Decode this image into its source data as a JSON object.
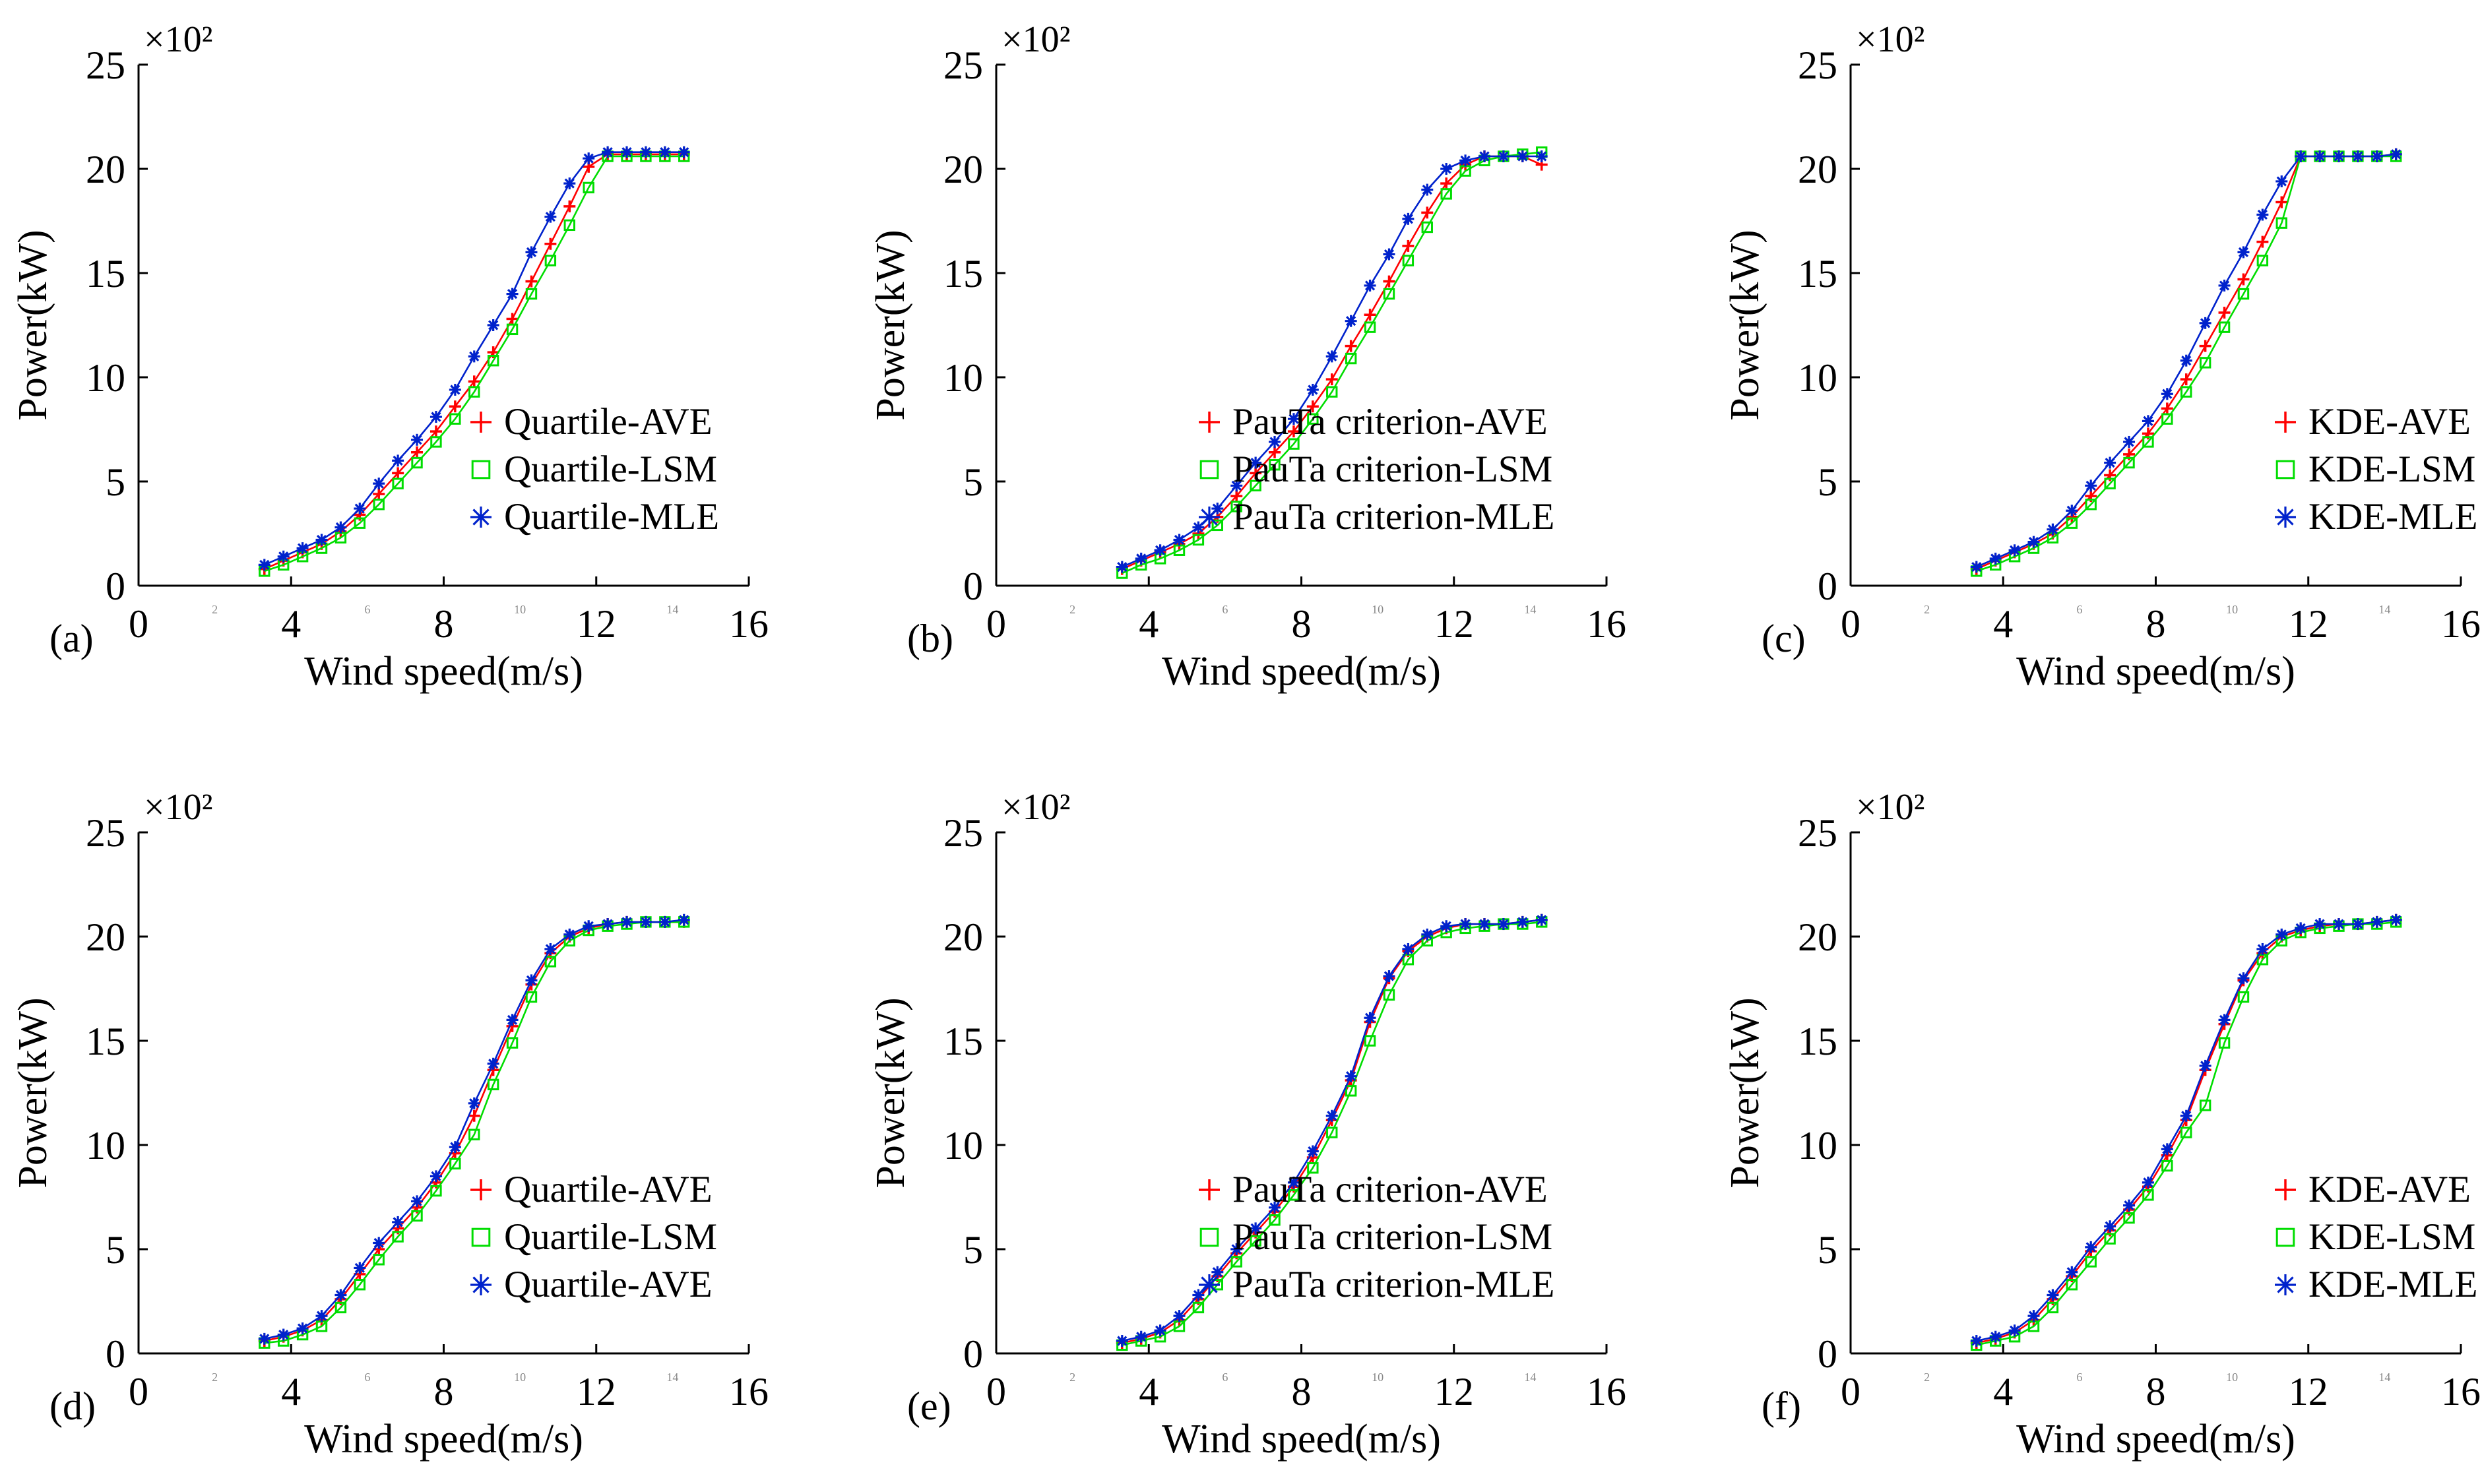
{
  "figure": {
    "axis_color": "#000000",
    "background": "#ffffff"
  },
  "chart_data": [
    {
      "type": "line",
      "panel_label": "(a)",
      "xlabel": "Wind speed(m/s)",
      "ylabel": "Power(kW)",
      "y_multiplier": "×10²",
      "xlim": [
        0,
        16
      ],
      "ylim": [
        0,
        25
      ],
      "xticks": [
        "0",
        "4",
        "8",
        "12",
        "16"
      ],
      "minor_xticks": [
        "2",
        "6",
        "10",
        "14"
      ],
      "yticks": [
        "0",
        "5",
        "10",
        "15",
        "20",
        "25"
      ],
      "legend": {
        "position": "bottom-right"
      },
      "x": [
        3.3,
        3.8,
        4.3,
        4.8,
        5.3,
        5.8,
        6.3,
        6.8,
        7.3,
        7.8,
        8.3,
        8.8,
        9.3,
        9.8,
        10.3,
        10.8,
        11.3,
        11.8,
        12.3,
        12.8,
        13.3,
        13.8,
        14.3
      ],
      "series": [
        {
          "name": "Quartile-AVE",
          "color": "#ff0000",
          "marker": "plus",
          "values": [
            0.8,
            1.2,
            1.6,
            2.0,
            2.6,
            3.4,
            4.4,
            5.4,
            6.4,
            7.4,
            8.6,
            9.8,
            11.2,
            12.8,
            14.6,
            16.4,
            18.2,
            20.1,
            20.7,
            20.7,
            20.7,
            20.7,
            20.7
          ]
        },
        {
          "name": "Quartile-LSM",
          "color": "#00dd00",
          "marker": "square",
          "values": [
            0.7,
            1.0,
            1.4,
            1.8,
            2.3,
            3.0,
            3.9,
            4.9,
            5.9,
            6.9,
            8.0,
            9.3,
            10.8,
            12.3,
            14.0,
            15.6,
            17.3,
            19.1,
            20.6,
            20.6,
            20.6,
            20.6,
            20.6
          ]
        },
        {
          "name": "Quartile-MLE",
          "color": "#0022cc",
          "marker": "asterisk",
          "values": [
            1.0,
            1.4,
            1.8,
            2.2,
            2.8,
            3.7,
            4.9,
            6.0,
            7.0,
            8.1,
            9.4,
            11.0,
            12.5,
            14.0,
            16.0,
            17.7,
            19.3,
            20.5,
            20.8,
            20.8,
            20.8,
            20.8,
            20.8
          ]
        }
      ]
    },
    {
      "type": "line",
      "panel_label": "(b)",
      "xlabel": "Wind speed(m/s)",
      "ylabel": "Power(kW)",
      "y_multiplier": "×10²",
      "xlim": [
        0,
        16
      ],
      "ylim": [
        0,
        25
      ],
      "xticks": [
        "0",
        "4",
        "8",
        "12",
        "16"
      ],
      "minor_xticks": [
        "2",
        "6",
        "10",
        "14"
      ],
      "yticks": [
        "0",
        "5",
        "10",
        "15",
        "20",
        "25"
      ],
      "legend": {
        "position": "bottom-right"
      },
      "x": [
        3.3,
        3.8,
        4.3,
        4.8,
        5.3,
        5.8,
        6.3,
        6.8,
        7.3,
        7.8,
        8.3,
        8.8,
        9.3,
        9.8,
        10.3,
        10.8,
        11.3,
        11.8,
        12.3,
        12.8,
        13.3,
        13.8,
        14.3
      ],
      "series": [
        {
          "name": "PauTa criterion-AVE",
          "color": "#ff0000",
          "marker": "plus",
          "values": [
            0.8,
            1.2,
            1.6,
            2.0,
            2.5,
            3.3,
            4.3,
            5.4,
            6.4,
            7.4,
            8.6,
            9.9,
            11.5,
            13.0,
            14.6,
            16.3,
            17.9,
            19.3,
            20.2,
            20.6,
            20.6,
            20.6,
            20.2
          ]
        },
        {
          "name": "PauTa criterion-LSM",
          "color": "#00dd00",
          "marker": "square",
          "values": [
            0.6,
            1.0,
            1.3,
            1.7,
            2.2,
            2.9,
            3.8,
            4.8,
            5.8,
            6.8,
            8.0,
            9.3,
            10.9,
            12.4,
            14.0,
            15.6,
            17.2,
            18.8,
            19.9,
            20.4,
            20.6,
            20.7,
            20.8
          ]
        },
        {
          "name": "PauTa criterion-MLE",
          "color": "#0022cc",
          "marker": "asterisk",
          "values": [
            0.9,
            1.3,
            1.7,
            2.2,
            2.8,
            3.7,
            4.8,
            5.9,
            6.9,
            8.0,
            9.4,
            11.0,
            12.7,
            14.4,
            15.9,
            17.6,
            19.0,
            20.0,
            20.4,
            20.6,
            20.6,
            20.6,
            20.6
          ]
        }
      ]
    },
    {
      "type": "line",
      "panel_label": "(c)",
      "xlabel": "Wind speed(m/s)",
      "ylabel": "Power(kW)",
      "y_multiplier": "×10²",
      "xlim": [
        0,
        16
      ],
      "ylim": [
        0,
        25
      ],
      "xticks": [
        "0",
        "4",
        "8",
        "12",
        "16"
      ],
      "minor_xticks": [
        "2",
        "6",
        "10",
        "14"
      ],
      "yticks": [
        "0",
        "5",
        "10",
        "15",
        "20",
        "25"
      ],
      "legend": {
        "position": "bottom-right"
      },
      "x": [
        3.3,
        3.8,
        4.3,
        4.8,
        5.3,
        5.8,
        6.3,
        6.8,
        7.3,
        7.8,
        8.3,
        8.8,
        9.3,
        9.8,
        10.3,
        10.8,
        11.3,
        11.8,
        12.3,
        12.8,
        13.3,
        13.8,
        14.3
      ],
      "series": [
        {
          "name": "KDE-AVE",
          "color": "#ff0000",
          "marker": "plus",
          "values": [
            0.8,
            1.2,
            1.6,
            2.0,
            2.5,
            3.3,
            4.3,
            5.3,
            6.3,
            7.3,
            8.5,
            9.9,
            11.5,
            13.1,
            14.7,
            16.5,
            18.4,
            20.6,
            20.6,
            20.6,
            20.6,
            20.6,
            20.7
          ]
        },
        {
          "name": "KDE-LSM",
          "color": "#00dd00",
          "marker": "square",
          "values": [
            0.7,
            1.0,
            1.4,
            1.8,
            2.3,
            3.0,
            3.9,
            4.9,
            5.9,
            6.9,
            8.0,
            9.3,
            10.7,
            12.4,
            14.0,
            15.6,
            17.4,
            20.6,
            20.6,
            20.6,
            20.6,
            20.6,
            20.6
          ]
        },
        {
          "name": "KDE-MLE",
          "color": "#0022cc",
          "marker": "asterisk",
          "values": [
            0.9,
            1.3,
            1.7,
            2.1,
            2.7,
            3.6,
            4.8,
            5.9,
            6.9,
            7.9,
            9.2,
            10.8,
            12.6,
            14.4,
            16.0,
            17.8,
            19.4,
            20.6,
            20.6,
            20.6,
            20.6,
            20.6,
            20.7
          ]
        }
      ]
    },
    {
      "type": "line",
      "panel_label": "(d)",
      "xlabel": "Wind speed(m/s)",
      "ylabel": "Power(kW)",
      "y_multiplier": "×10²",
      "xlim": [
        0,
        16
      ],
      "ylim": [
        0,
        25
      ],
      "xticks": [
        "0",
        "4",
        "8",
        "12",
        "16"
      ],
      "minor_xticks": [
        "2",
        "6",
        "10",
        "14"
      ],
      "yticks": [
        "0",
        "5",
        "10",
        "15",
        "20",
        "25"
      ],
      "legend": {
        "position": "bottom-right"
      },
      "x": [
        3.3,
        3.8,
        4.3,
        4.8,
        5.3,
        5.8,
        6.3,
        6.8,
        7.3,
        7.8,
        8.3,
        8.8,
        9.3,
        9.8,
        10.3,
        10.8,
        11.3,
        11.8,
        12.3,
        12.8,
        13.3,
        13.8,
        14.3
      ],
      "series": [
        {
          "name": "Quartile-AVE",
          "color": "#ff0000",
          "marker": "plus",
          "values": [
            0.6,
            0.8,
            1.1,
            1.6,
            2.6,
            3.8,
            5.0,
            6.0,
            7.0,
            8.2,
            9.6,
            11.4,
            13.6,
            15.7,
            17.7,
            19.2,
            20.0,
            20.4,
            20.6,
            20.7,
            20.7,
            20.7,
            20.7
          ]
        },
        {
          "name": "Quartile-LSM",
          "color": "#00dd00",
          "marker": "square",
          "values": [
            0.5,
            0.6,
            0.9,
            1.3,
            2.2,
            3.3,
            4.5,
            5.6,
            6.6,
            7.8,
            9.1,
            10.5,
            12.9,
            14.9,
            17.1,
            18.8,
            19.8,
            20.3,
            20.5,
            20.6,
            20.7,
            20.7,
            20.7
          ]
        },
        {
          "name": "Quartile-AVE",
          "color": "#0022cc",
          "marker": "asterisk",
          "values": [
            0.7,
            0.9,
            1.2,
            1.8,
            2.8,
            4.1,
            5.3,
            6.3,
            7.3,
            8.5,
            9.9,
            12.0,
            13.9,
            16.0,
            17.9,
            19.4,
            20.1,
            20.5,
            20.6,
            20.7,
            20.7,
            20.7,
            20.8
          ]
        }
      ]
    },
    {
      "type": "line",
      "panel_label": "(e)",
      "xlabel": "Wind speed(m/s)",
      "ylabel": "Power(kW)",
      "y_multiplier": "×10²",
      "xlim": [
        0,
        16
      ],
      "ylim": [
        0,
        25
      ],
      "xticks": [
        "0",
        "4",
        "8",
        "12",
        "16"
      ],
      "minor_xticks": [
        "2",
        "6",
        "10",
        "14"
      ],
      "yticks": [
        "0",
        "5",
        "10",
        "15",
        "20",
        "25"
      ],
      "legend": {
        "position": "bottom-right"
      },
      "x": [
        3.3,
        3.8,
        4.3,
        4.8,
        5.3,
        5.8,
        6.3,
        6.8,
        7.3,
        7.8,
        8.3,
        8.8,
        9.3,
        9.8,
        10.3,
        10.8,
        11.3,
        11.8,
        12.3,
        12.8,
        13.3,
        13.8,
        14.3
      ],
      "series": [
        {
          "name": "PauTa criterion-AVE",
          "color": "#ff0000",
          "marker": "plus",
          "values": [
            0.5,
            0.7,
            1.0,
            1.6,
            2.6,
            3.7,
            4.8,
            5.8,
            6.8,
            8.0,
            9.4,
            11.2,
            13.1,
            15.9,
            18.0,
            19.3,
            20.0,
            20.4,
            20.6,
            20.6,
            20.6,
            20.7,
            20.8
          ]
        },
        {
          "name": "PauTa criterion-LSM",
          "color": "#00dd00",
          "marker": "square",
          "values": [
            0.4,
            0.6,
            0.8,
            1.3,
            2.2,
            3.3,
            4.4,
            5.4,
            6.4,
            7.6,
            8.9,
            10.6,
            12.6,
            15.0,
            17.2,
            18.9,
            19.8,
            20.2,
            20.4,
            20.5,
            20.6,
            20.6,
            20.7
          ]
        },
        {
          "name": "PauTa criterion-MLE",
          "color": "#0022cc",
          "marker": "asterisk",
          "values": [
            0.6,
            0.8,
            1.1,
            1.8,
            2.8,
            3.9,
            5.0,
            6.0,
            7.0,
            8.2,
            9.7,
            11.4,
            13.3,
            16.1,
            18.1,
            19.4,
            20.1,
            20.5,
            20.6,
            20.6,
            20.6,
            20.7,
            20.8
          ]
        }
      ]
    },
    {
      "type": "line",
      "panel_label": "(f)",
      "xlabel": "Wind speed(m/s)",
      "ylabel": "Power(kW)",
      "y_multiplier": "×10²",
      "xlim": [
        0,
        16
      ],
      "ylim": [
        0,
        25
      ],
      "xticks": [
        "0",
        "4",
        "8",
        "12",
        "16"
      ],
      "minor_xticks": [
        "2",
        "6",
        "10",
        "14"
      ],
      "yticks": [
        "0",
        "5",
        "10",
        "15",
        "20",
        "25"
      ],
      "legend": {
        "position": "bottom-right"
      },
      "x": [
        3.3,
        3.8,
        4.3,
        4.8,
        5.3,
        5.8,
        6.3,
        6.8,
        7.3,
        7.8,
        8.3,
        8.8,
        9.3,
        9.8,
        10.3,
        10.8,
        11.3,
        11.8,
        12.3,
        12.8,
        13.3,
        13.8,
        14.3
      ],
      "series": [
        {
          "name": "KDE-AVE",
          "color": "#ff0000",
          "marker": "plus",
          "values": [
            0.5,
            0.7,
            1.0,
            1.6,
            2.6,
            3.7,
            4.9,
            5.9,
            6.9,
            8.0,
            9.5,
            11.2,
            13.6,
            15.8,
            17.9,
            19.2,
            20.0,
            20.3,
            20.5,
            20.6,
            20.6,
            20.7,
            20.8
          ]
        },
        {
          "name": "KDE-LSM",
          "color": "#00dd00",
          "marker": "square",
          "values": [
            0.4,
            0.6,
            0.8,
            1.3,
            2.2,
            3.3,
            4.4,
            5.5,
            6.5,
            7.6,
            9.0,
            10.6,
            11.9,
            14.9,
            17.1,
            18.9,
            19.8,
            20.2,
            20.4,
            20.5,
            20.6,
            20.6,
            20.7
          ]
        },
        {
          "name": "KDE-MLE",
          "color": "#0022cc",
          "marker": "asterisk",
          "values": [
            0.6,
            0.8,
            1.1,
            1.8,
            2.8,
            3.9,
            5.1,
            6.1,
            7.1,
            8.2,
            9.8,
            11.4,
            13.8,
            16.0,
            18.0,
            19.4,
            20.1,
            20.4,
            20.6,
            20.6,
            20.6,
            20.7,
            20.8
          ]
        }
      ]
    }
  ]
}
